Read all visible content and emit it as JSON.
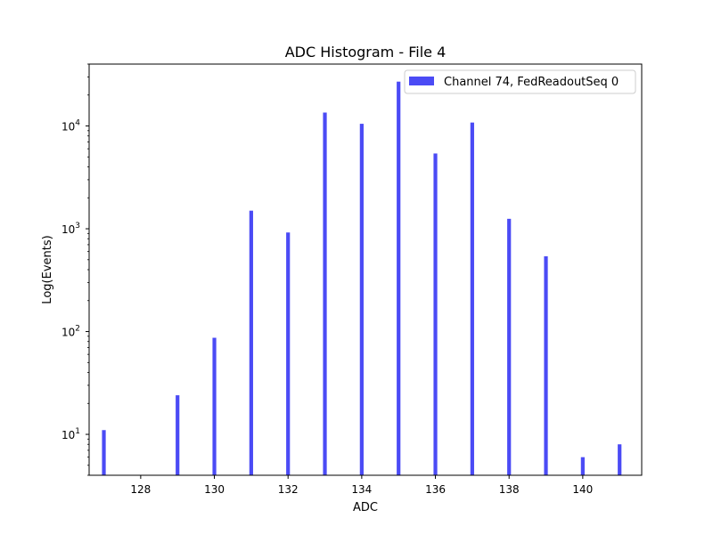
{
  "chart_data": {
    "type": "bar",
    "title": "ADC Histogram - File 4",
    "xlabel": "ADC",
    "ylabel": "Log(Events)",
    "yscale": "log",
    "xlim": [
      126.6,
      141.6
    ],
    "ylim": [
      4,
      40000
    ],
    "xticks": [
      128,
      130,
      132,
      134,
      136,
      138,
      140
    ],
    "yticks": [
      {
        "value": 10,
        "mantissa": "10",
        "exponent": "1"
      },
      {
        "value": 100,
        "mantissa": "10",
        "exponent": "2"
      },
      {
        "value": 1000,
        "mantissa": "10",
        "exponent": "3"
      },
      {
        "value": 10000,
        "mantissa": "10",
        "exponent": "4"
      }
    ],
    "grid": false,
    "legend_position": "top-right",
    "series": [
      {
        "name": "Channel 74, FedReadoutSeq 0",
        "color": "#4b4bf5",
        "x": [
          127,
          129,
          130,
          131,
          132,
          133,
          134,
          135,
          136,
          137,
          138,
          139,
          140,
          141
        ],
        "values": [
          11,
          24,
          87,
          1500,
          920,
          13500,
          10500,
          27000,
          5400,
          10800,
          1250,
          540,
          6,
          8
        ]
      }
    ]
  }
}
